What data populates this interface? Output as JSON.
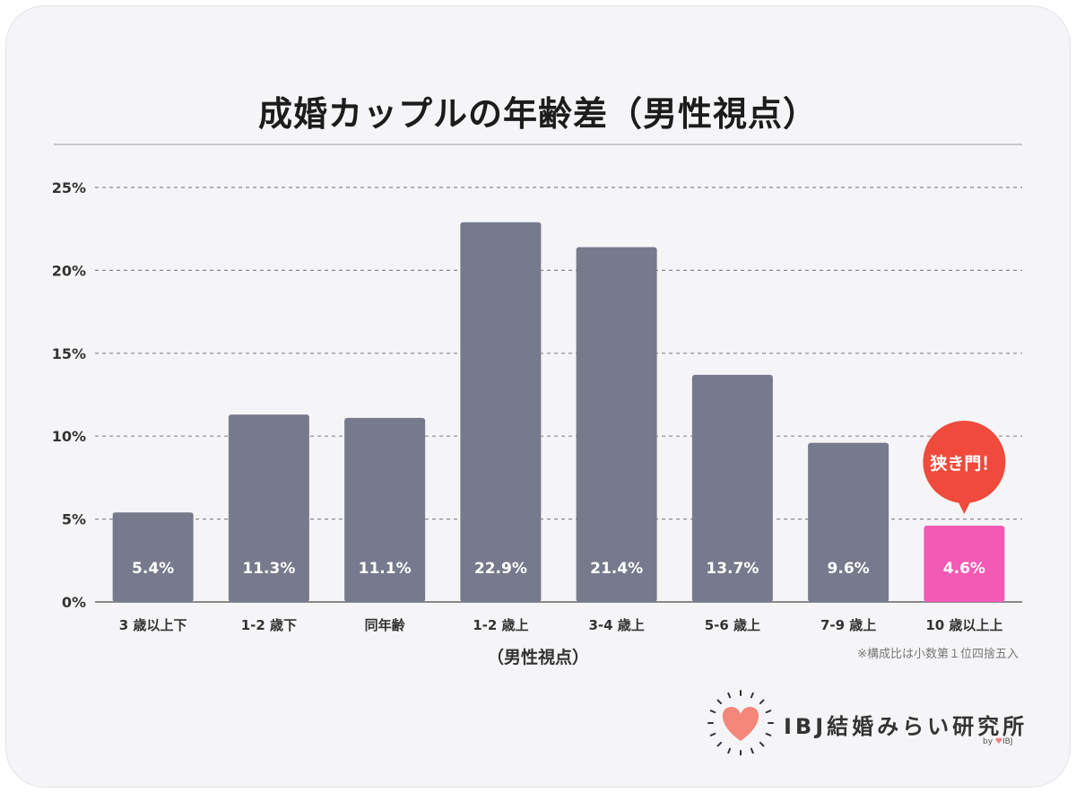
{
  "title": "成婚カップルの年齢差（男性視点）",
  "note": "※構成比は小数第１位四捨五入",
  "callout": "狭き門！",
  "logo": {
    "text": "IBJ結婚みらい研究所",
    "by": "by",
    "mark": "♥",
    "brand": "IBJ"
  },
  "colors": {
    "bar": "#767a8c",
    "highlight": "#f25ab4",
    "callout": "#ef4a3c",
    "heart": "#f4877a"
  },
  "chart_data": {
    "type": "bar",
    "title": "成婚カップルの年齢差（男性視点）",
    "xlabel": "（男性視点）",
    "ylabel": "",
    "categories": [
      "3 歳以上下",
      "1-2 歳下",
      "同年齢",
      "1-2 歳上",
      "3-4 歳上",
      "5-6 歳上",
      "7-9 歳上",
      "10 歳以上上"
    ],
    "values": [
      5.4,
      11.3,
      11.1,
      22.9,
      21.4,
      13.7,
      9.6,
      4.6
    ],
    "value_labels": [
      "5.4%",
      "11.3%",
      "11.1%",
      "22.9%",
      "21.4%",
      "13.7%",
      "9.6%",
      "4.6%"
    ],
    "highlight_index": 7,
    "ylim": [
      0,
      25
    ],
    "yticks": [
      0,
      5,
      10,
      15,
      20,
      25
    ],
    "ytick_labels": [
      "0%",
      "5%",
      "10%",
      "15%",
      "20%",
      "25%"
    ],
    "grid": true,
    "legend": "none"
  }
}
